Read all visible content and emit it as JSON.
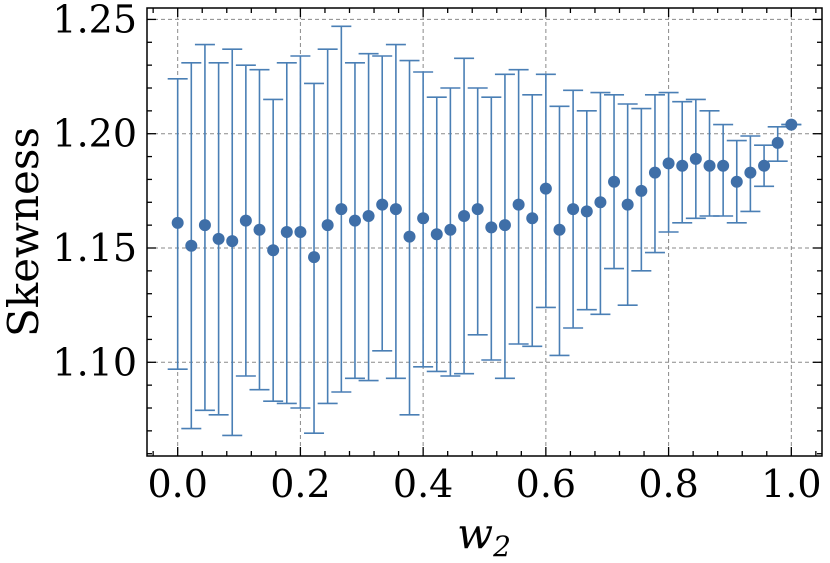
{
  "chart_data": {
    "type": "scatter",
    "title": "",
    "xlabel": "w",
    "xlabel_subscript": "2",
    "ylabel": "Skewness",
    "xlim": [
      -0.05,
      1.05
    ],
    "ylim": [
      1.059,
      1.255
    ],
    "grid": true,
    "x_ticks": [
      0.0,
      0.2,
      0.4,
      0.6,
      0.8,
      1.0
    ],
    "x_tick_labels": [
      "0.0",
      "0.2",
      "0.4",
      "0.6",
      "0.8",
      "1.0"
    ],
    "y_ticks": [
      1.1,
      1.15,
      1.2,
      1.25
    ],
    "y_tick_labels": [
      "1.10",
      "1.15",
      "1.20",
      "1.25"
    ],
    "series": [
      {
        "name": "Skewness",
        "color": "#3f6fa8",
        "x": [
          0.0,
          0.0222,
          0.0444,
          0.0667,
          0.0889,
          0.1111,
          0.1333,
          0.1556,
          0.1778,
          0.2,
          0.2222,
          0.2444,
          0.2667,
          0.2889,
          0.3111,
          0.3333,
          0.3556,
          0.3778,
          0.4,
          0.4222,
          0.4444,
          0.4667,
          0.4889,
          0.5111,
          0.5333,
          0.5556,
          0.5778,
          0.6,
          0.6222,
          0.6444,
          0.6667,
          0.6889,
          0.7111,
          0.7333,
          0.7556,
          0.7778,
          0.8,
          0.8222,
          0.8444,
          0.8667,
          0.8889,
          0.9111,
          0.9333,
          0.9556,
          0.9778,
          1.0
        ],
        "y": [
          1.161,
          1.151,
          1.16,
          1.154,
          1.153,
          1.162,
          1.158,
          1.149,
          1.157,
          1.157,
          1.146,
          1.16,
          1.167,
          1.162,
          1.164,
          1.169,
          1.167,
          1.155,
          1.163,
          1.156,
          1.158,
          1.164,
          1.167,
          1.159,
          1.16,
          1.169,
          1.163,
          1.176,
          1.158,
          1.167,
          1.166,
          1.17,
          1.179,
          1.169,
          1.175,
          1.183,
          1.187,
          1.186,
          1.189,
          1.186,
          1.186,
          1.179,
          1.183,
          1.186,
          1.196,
          1.204
        ],
        "y_lower": [
          1.097,
          1.071,
          1.079,
          1.077,
          1.068,
          1.094,
          1.088,
          1.083,
          1.082,
          1.08,
          1.069,
          1.082,
          1.087,
          1.093,
          1.092,
          1.105,
          1.093,
          1.077,
          1.098,
          1.096,
          1.094,
          1.095,
          1.112,
          1.101,
          1.093,
          1.108,
          1.107,
          1.124,
          1.103,
          1.115,
          1.123,
          1.121,
          1.141,
          1.125,
          1.14,
          1.148,
          1.157,
          1.161,
          1.163,
          1.164,
          1.164,
          1.161,
          1.166,
          1.177,
          1.188,
          1.204
        ],
        "y_upper": [
          1.224,
          1.231,
          1.239,
          1.231,
          1.237,
          1.23,
          1.228,
          1.215,
          1.231,
          1.234,
          1.222,
          1.237,
          1.247,
          1.231,
          1.235,
          1.234,
          1.239,
          1.232,
          1.227,
          1.216,
          1.22,
          1.233,
          1.22,
          1.216,
          1.226,
          1.228,
          1.217,
          1.226,
          1.212,
          1.219,
          1.21,
          1.218,
          1.217,
          1.213,
          1.211,
          1.217,
          1.218,
          1.214,
          1.215,
          1.21,
          1.204,
          1.197,
          1.199,
          1.195,
          1.203,
          1.204
        ]
      }
    ]
  }
}
